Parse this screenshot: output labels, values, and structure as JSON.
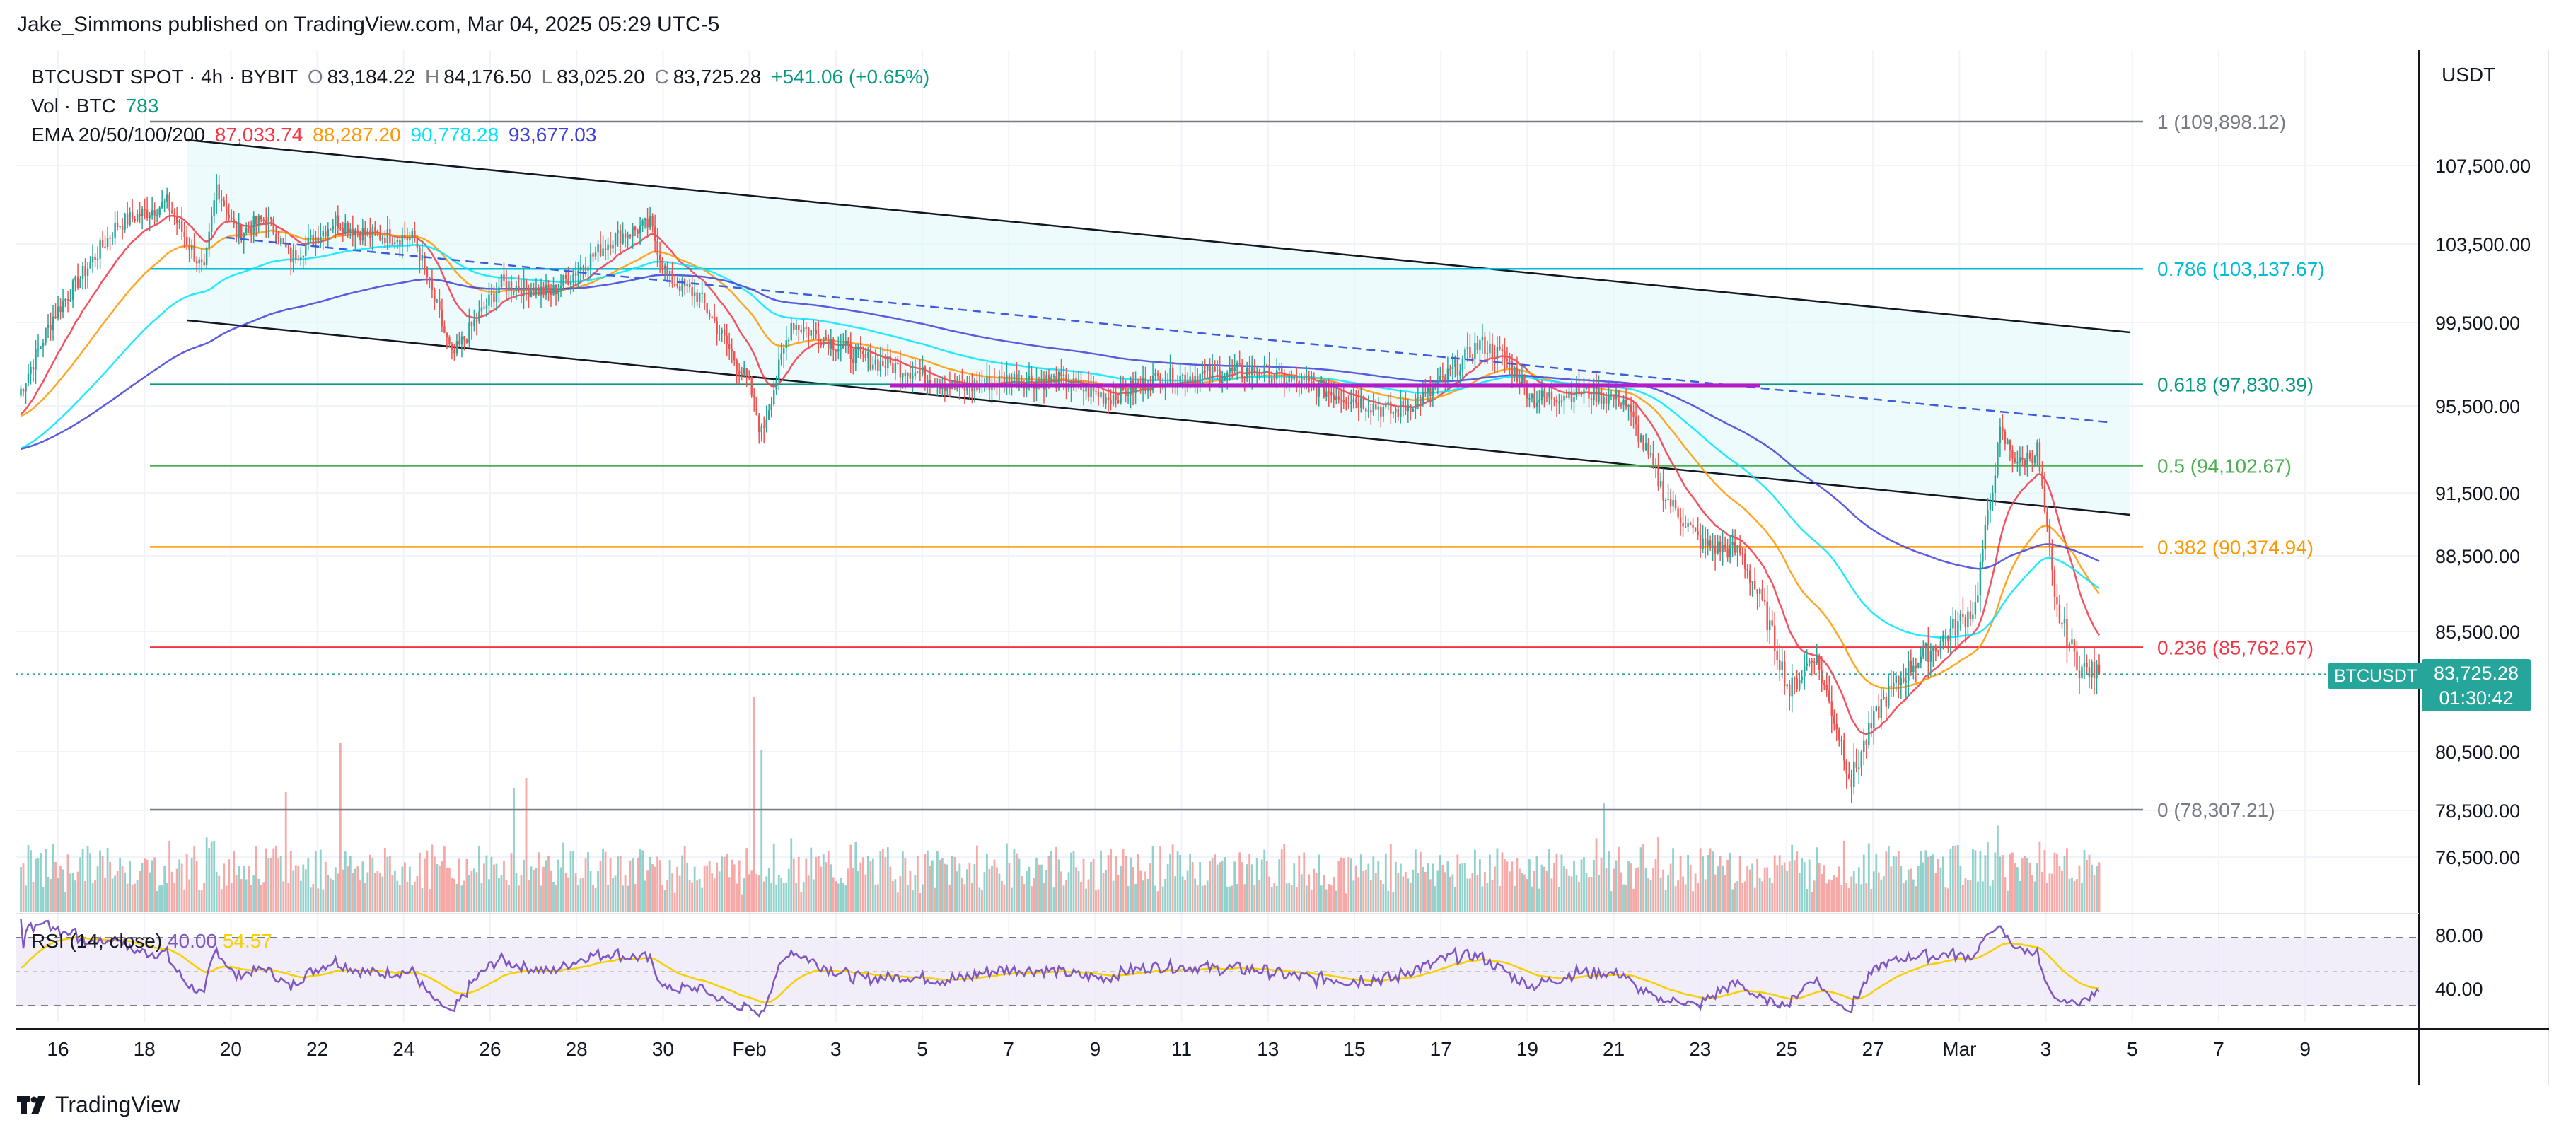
{
  "header": {
    "publisher_line": "Jake_Simmons published on TradingView.com, Mar 04, 2025 05:29 UTC-5"
  },
  "legend": {
    "symbol": "BTCUSDT SPOT · 4h · BYBIT",
    "o_label": "O",
    "o_value": "83,184.22",
    "h_label": "H",
    "h_value": "84,176.50",
    "l_label": "L",
    "l_value": "83,025.20",
    "c_label": "C",
    "c_value": "83,725.28",
    "change": "+541.06 (+0.65%)",
    "vol_label": "Vol · BTC",
    "vol_value": "783",
    "ema_label": "EMA 20/50/100/200",
    "ema_values": [
      "87,033.74",
      "88,287.20",
      "90,778.28",
      "93,677.03"
    ]
  },
  "rsi": {
    "label": "RSI (14, close)",
    "value": "40.00",
    "ma_value": "54.57"
  },
  "price_axis": {
    "currency": "USDT"
  },
  "last_price": {
    "symbol": "BTCUSDT",
    "price": "83,725.28",
    "countdown": "01:30:42"
  },
  "brand": {
    "name": "TradingView"
  },
  "colors": {
    "up": "#26a69a",
    "down": "#ef5350",
    "ema20": "#f23645",
    "ema50": "#ff9800",
    "ema100": "#00e5ff",
    "ema200": "#3f3fd9",
    "rsi": "#7e57c2",
    "rsi_ma": "#f7d000",
    "channel_fill": "#e0f7fa",
    "support": "#b71cc9"
  },
  "chart_data": {
    "type": "candlestick",
    "interval": "4h",
    "x_ticks": [
      "16",
      "18",
      "20",
      "22",
      "24",
      "26",
      "28",
      "30",
      "Feb",
      "3",
      "5",
      "7",
      "9",
      "11",
      "13",
      "15",
      "17",
      "19",
      "21",
      "23",
      "25",
      "27",
      "Mar",
      "3",
      "5",
      "7",
      "9"
    ],
    "y_ticks": [
      "107,500.00",
      "103,500.00",
      "99,500.00",
      "95,500.00",
      "91,500.00",
      "88,500.00",
      "85,500.00",
      "80,500.00",
      "78,500.00",
      "76,500.00"
    ],
    "fib_levels": [
      {
        "label": "1 (109,898.12)",
        "ratio": 1,
        "price": 109898.12,
        "color": "#787b86"
      },
      {
        "label": "0.786 (103,137.67)",
        "ratio": 0.786,
        "price": 103137.67,
        "color": "#00bcd4"
      },
      {
        "label": "0.618 (97,830.39)",
        "ratio": 0.618,
        "price": 97830.39,
        "color": "#089981"
      },
      {
        "label": "0.5 (94,102.67)",
        "ratio": 0.5,
        "price": 94102.67,
        "color": "#4caf50"
      },
      {
        "label": "0.382 (90,374.94)",
        "ratio": 0.382,
        "price": 90374.94,
        "color": "#ff9800"
      },
      {
        "label": "0.236 (85,762.67)",
        "ratio": 0.236,
        "price": 85762.67,
        "color": "#f23645"
      },
      {
        "label": "0 (78,307.21)",
        "ratio": 0,
        "price": 78307.21,
        "color": "#787b86"
      }
    ],
    "rsi_levels": [
      "80.00",
      "40.00"
    ],
    "last_close": 83725.28
  }
}
